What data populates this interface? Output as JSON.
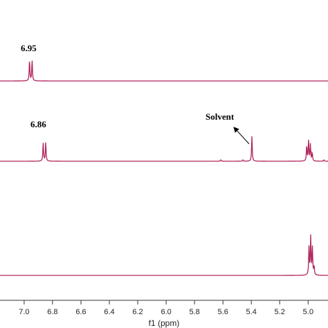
{
  "chart_data": {
    "type": "line",
    "xlabel": "f1 (ppm)",
    "xlim": [
      4.86,
      7.17
    ],
    "x_reversed": true,
    "xticks": [
      "7.0",
      "6.8",
      "6.6",
      "6.4",
      "6.2",
      "6.0",
      "5.8",
      "5.6",
      "5.4",
      "5.2",
      "5.0"
    ],
    "tick_values": [
      7.0,
      6.8,
      6.6,
      6.4,
      6.2,
      6.0,
      5.8,
      5.6,
      5.4,
      5.2,
      5.0
    ],
    "trace_color": "#b0245c",
    "series": [
      {
        "peaks": [
          {
            "x": 6.962,
            "y": 30
          },
          {
            "x": 6.944,
            "y": 30
          }
        ],
        "annotations": [
          {
            "text": "6.95"
          }
        ]
      },
      {
        "peaks": [
          {
            "x": 6.866,
            "y": 27
          },
          {
            "x": 6.848,
            "y": 27
          },
          {
            "x": 5.615,
            "y": 2
          },
          {
            "x": 5.46,
            "y": 2
          },
          {
            "x": 5.396,
            "y": 36
          },
          {
            "x": 5.01,
            "y": 22
          },
          {
            "x": 4.997,
            "y": 30
          },
          {
            "x": 4.984,
            "y": 24
          },
          {
            "x": 4.971,
            "y": 12
          },
          {
            "x": 4.89,
            "y": 2
          }
        ],
        "annotations": [
          {
            "text": "6.86"
          },
          {
            "text": "Solvent"
          }
        ]
      },
      {
        "peaks": [
          {
            "x": 4.994,
            "y": 40
          },
          {
            "x": 4.982,
            "y": 55
          },
          {
            "x": 4.97,
            "y": 40
          },
          {
            "x": 4.958,
            "y": 12
          }
        ],
        "annotations": []
      }
    ]
  }
}
